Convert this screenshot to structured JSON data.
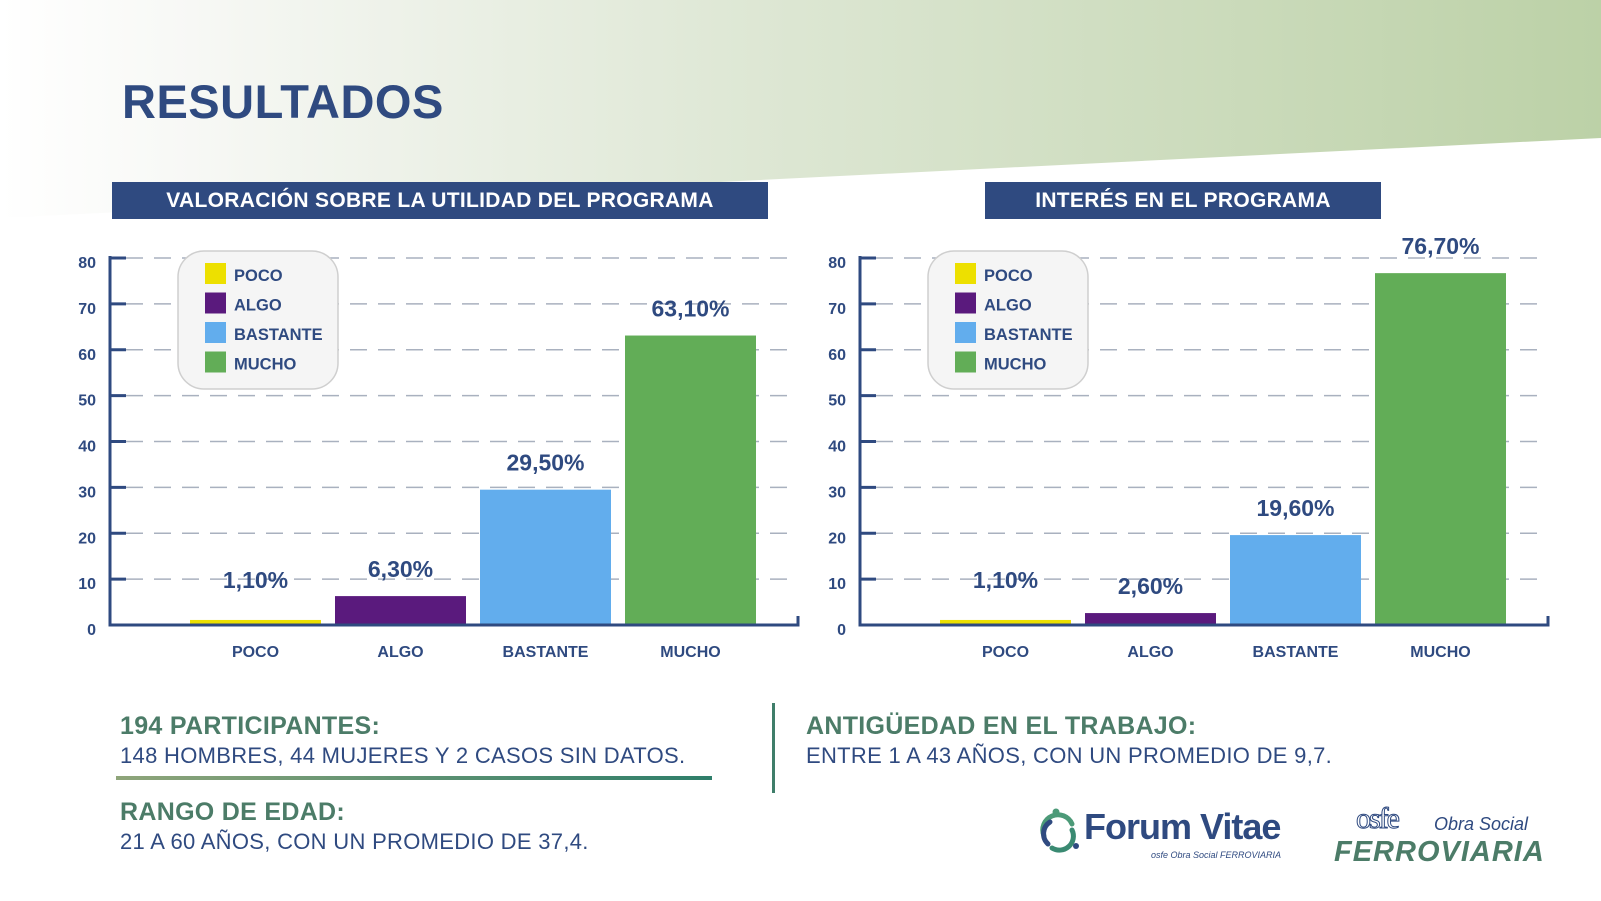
{
  "page": {
    "title": "RESULTADOS",
    "colors": {
      "navy": "#2f4a80",
      "green_text": "#4c7c68",
      "band_green": "#bcd1a7",
      "poco": "#ede000",
      "algo": "#5a1a7d",
      "bastante": "#62aded",
      "mucho": "#62ad57"
    }
  },
  "chart_data": [
    {
      "type": "bar",
      "title": "VALORACIÓN SOBRE LA UTILIDAD DEL PROGRAMA",
      "categories": [
        "POCO",
        "ALGO",
        "BASTANTE",
        "MUCHO"
      ],
      "values": [
        1.1,
        6.3,
        29.5,
        63.1
      ],
      "data_labels": [
        "1,10%",
        "6,30%",
        "29,50%",
        "63,10%"
      ],
      "colors": [
        "#ede000",
        "#5a1a7d",
        "#62aded",
        "#62ad57"
      ],
      "ylim": [
        0,
        80
      ],
      "yticks": [
        0,
        10,
        20,
        30,
        40,
        50,
        60,
        70,
        80
      ],
      "ytick_labels": [
        "0",
        "10",
        "20",
        "30",
        "40",
        "50",
        "60",
        "70",
        "80"
      ],
      "xlabel": "",
      "ylabel": "",
      "grid": true,
      "legend": {
        "position": "top-left",
        "entries": [
          {
            "label": "POCO",
            "color": "#ede000"
          },
          {
            "label": "ALGO",
            "color": "#5a1a7d"
          },
          {
            "label": "BASTANTE",
            "color": "#62aded"
          },
          {
            "label": "MUCHO",
            "color": "#62ad57"
          }
        ]
      }
    },
    {
      "type": "bar",
      "title": "INTERÉS EN EL PROGRAMA",
      "categories": [
        "POCO",
        "ALGO",
        "BASTANTE",
        "MUCHO"
      ],
      "values": [
        1.1,
        2.6,
        19.6,
        76.7
      ],
      "data_labels": [
        "1,10%",
        "2,60%",
        "19,60%",
        "76,70%"
      ],
      "colors": [
        "#ede000",
        "#5a1a7d",
        "#62aded",
        "#62ad57"
      ],
      "ylim": [
        0,
        80
      ],
      "yticks": [
        0,
        10,
        20,
        30,
        40,
        50,
        60,
        70,
        80
      ],
      "ytick_labels": [
        "0",
        "10",
        "20",
        "30",
        "40",
        "50",
        "60",
        "70",
        "80"
      ],
      "xlabel": "",
      "ylabel": "",
      "grid": true,
      "legend": {
        "position": "top-left",
        "entries": [
          {
            "label": "POCO",
            "color": "#ede000"
          },
          {
            "label": "ALGO",
            "color": "#5a1a7d"
          },
          {
            "label": "BASTANTE",
            "color": "#62aded"
          },
          {
            "label": "MUCHO",
            "color": "#62ad57"
          }
        ]
      }
    }
  ],
  "stats": {
    "participantes": {
      "label": "194 PARTICIPANTES:",
      "value": "148 HOMBRES, 44 MUJERES Y 2 CASOS SIN DATOS."
    },
    "edad": {
      "label": "RANGO DE EDAD:",
      "value": "21 A 60 AÑOS, CON UN PROMEDIO DE 37,4."
    },
    "antiguedad": {
      "label": "ANTIGÜEDAD EN EL TRABAJO:",
      "value": "ENTRE 1 A 43 AÑOS, CON UN PROMEDIO DE 9,7."
    }
  },
  "logos": {
    "forum_vitae": {
      "name": "Forum Vitae",
      "sub_mark": "osfe",
      "sub_text": "Obra Social FERROVIARIA"
    },
    "osfe": {
      "mark": "osfe",
      "obra": "Obra Social",
      "ferroviaria": "FERROVIARIA"
    }
  }
}
